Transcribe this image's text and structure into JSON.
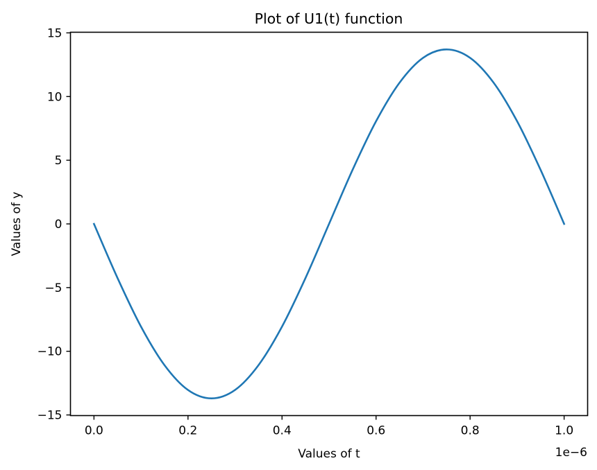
{
  "chart_data": {
    "type": "line",
    "title": "Plot of U1(t) function",
    "xlabel": "Values of t",
    "ylabel": "Values of y",
    "x_offset_label": "1e−6",
    "x_scale": 1e-06,
    "xlim": [
      -5e-08,
      1.05e-06
    ],
    "ylim": [
      -15.05,
      15.05
    ],
    "xticks": [
      0,
      2e-07,
      4e-07,
      6e-07,
      8e-07,
      1e-06
    ],
    "xtick_labels": [
      "0.0",
      "0.2",
      "0.4",
      "0.6",
      "0.8",
      "1.0"
    ],
    "yticks": [
      -15,
      -10,
      -5,
      0,
      5,
      10,
      15
    ],
    "ytick_labels": [
      "−15",
      "−10",
      "−5",
      "0",
      "5",
      "10",
      "15"
    ],
    "grid": false,
    "series": [
      {
        "color": "#1f77b4",
        "x": [
          0,
          5e-08,
          1e-07,
          1.5e-07,
          2e-07,
          2.5e-07,
          3e-07,
          3.5e-07,
          4e-07,
          4.5e-07,
          5e-07,
          5.5e-07,
          6e-07,
          6.5e-07,
          7e-07,
          7.5e-07,
          8e-07,
          8.5e-07,
          9e-07,
          9.5e-07,
          1e-06
        ],
        "y": [
          0,
          -4.24,
          -8.06,
          -11.09,
          -13.04,
          -13.7,
          -13.04,
          -11.09,
          -8.06,
          -4.24,
          0,
          4.24,
          8.06,
          11.09,
          13.04,
          13.7,
          13.04,
          11.09,
          8.06,
          4.24,
          0
        ]
      }
    ]
  }
}
